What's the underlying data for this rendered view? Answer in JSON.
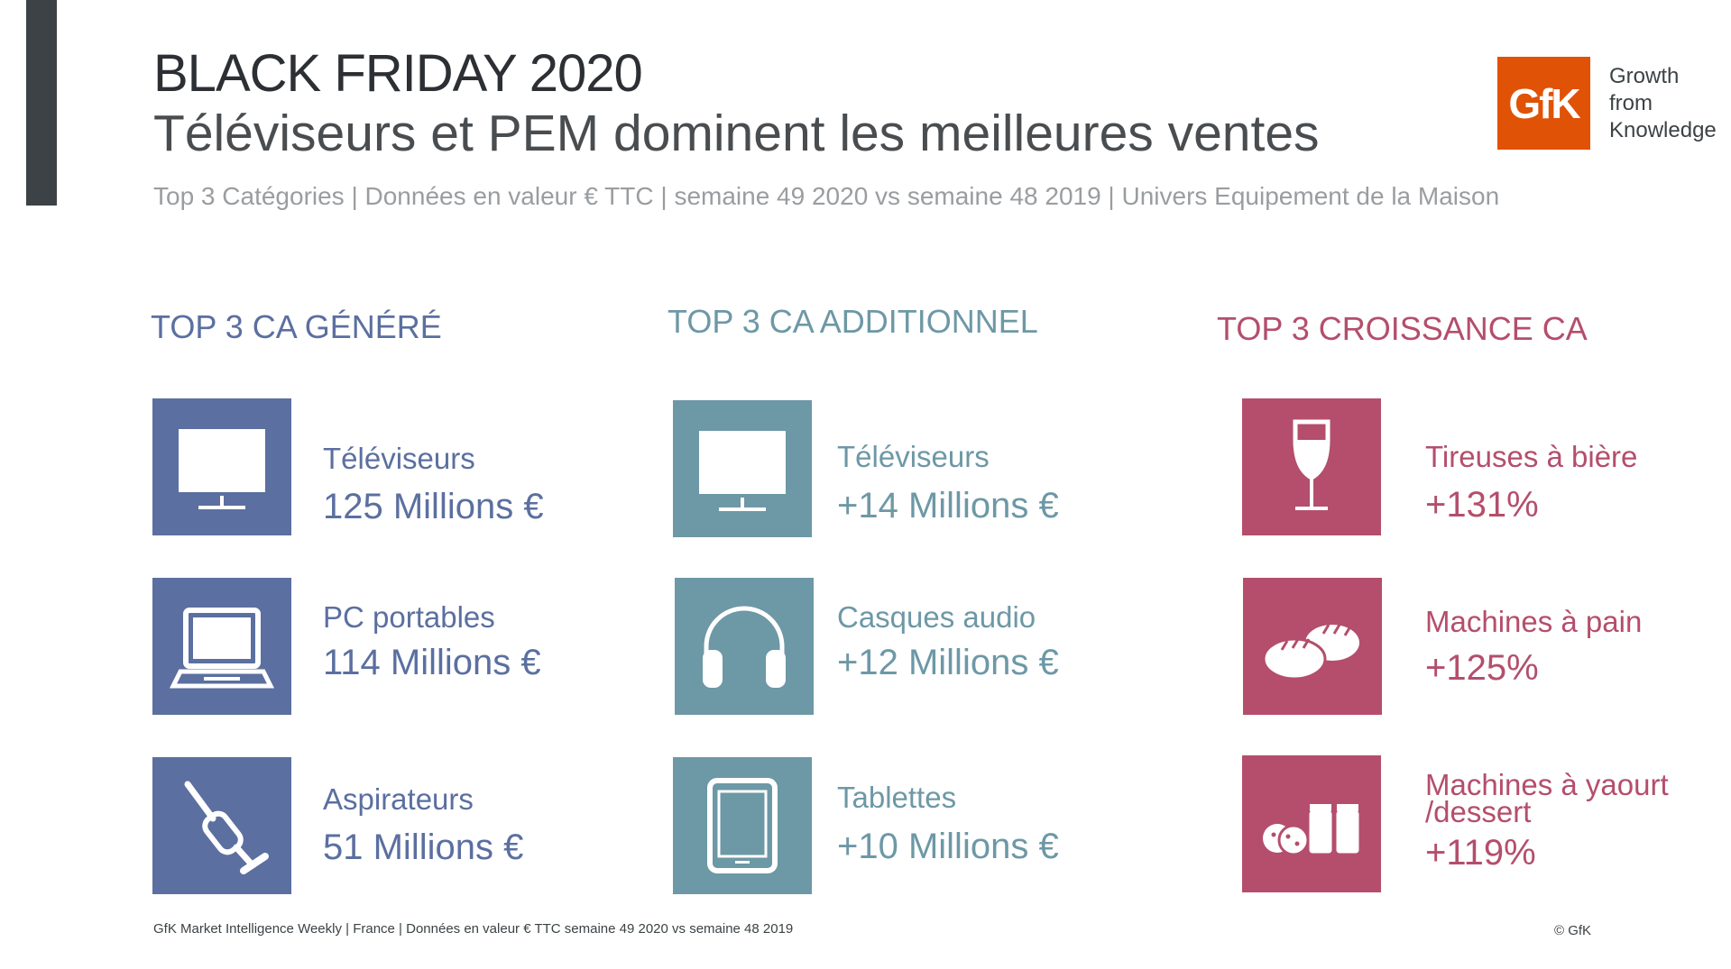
{
  "header": {
    "title": "BLACK FRIDAY 2020",
    "subtitle": "Téléviseurs et PEM dominent les meilleures ventes",
    "meta": "Top 3 Catégories | Données en valeur € TTC | semaine 49 2020 vs semaine 48 2019 | Univers Equipement de la Maison"
  },
  "logo": {
    "mark": "GfK",
    "tagline": [
      "Growth",
      "from",
      "Knowledge"
    ],
    "color": "#e05206"
  },
  "columns": [
    {
      "heading": "TOP 3 CA GÉNÉRÉ",
      "color": "#5b6fa0",
      "items": [
        {
          "label": "Téléviseurs",
          "value": "125 Millions €",
          "icon": "television-icon"
        },
        {
          "label": "PC portables",
          "value": "114 Millions €",
          "icon": "laptop-icon"
        },
        {
          "label": "Aspirateurs",
          "value": "51 Millions €",
          "icon": "vacuum-cleaner-icon"
        }
      ]
    },
    {
      "heading": "TOP 3 CA ADDITIONNEL",
      "color": "#6d98a6",
      "items": [
        {
          "label": "Téléviseurs",
          "value": "+14 Millions €",
          "icon": "television-icon"
        },
        {
          "label": "Casques audio",
          "value": "+12 Millions €",
          "icon": "headphones-icon"
        },
        {
          "label": "Tablettes",
          "value": "+10 Millions €",
          "icon": "tablet-icon"
        }
      ]
    },
    {
      "heading": "TOP 3 CROISSANCE CA",
      "color": "#b44e6c",
      "items": [
        {
          "label": "Tireuses à bière",
          "value": "+131%",
          "icon": "beer-glass-icon"
        },
        {
          "label": "Machines à pain",
          "value": "+125%",
          "icon": "bread-icon"
        },
        {
          "label_line1": "Machines à yaourt",
          "label_line2": "/dessert",
          "value": "+119%",
          "icon": "yogurt-jars-icon"
        }
      ]
    }
  ],
  "footer": {
    "source": "GfK Market Intelligence Weekly | France | Données en valeur € TTC semaine 49 2020 vs semaine 48 2019",
    "copyright": "© GfK"
  }
}
